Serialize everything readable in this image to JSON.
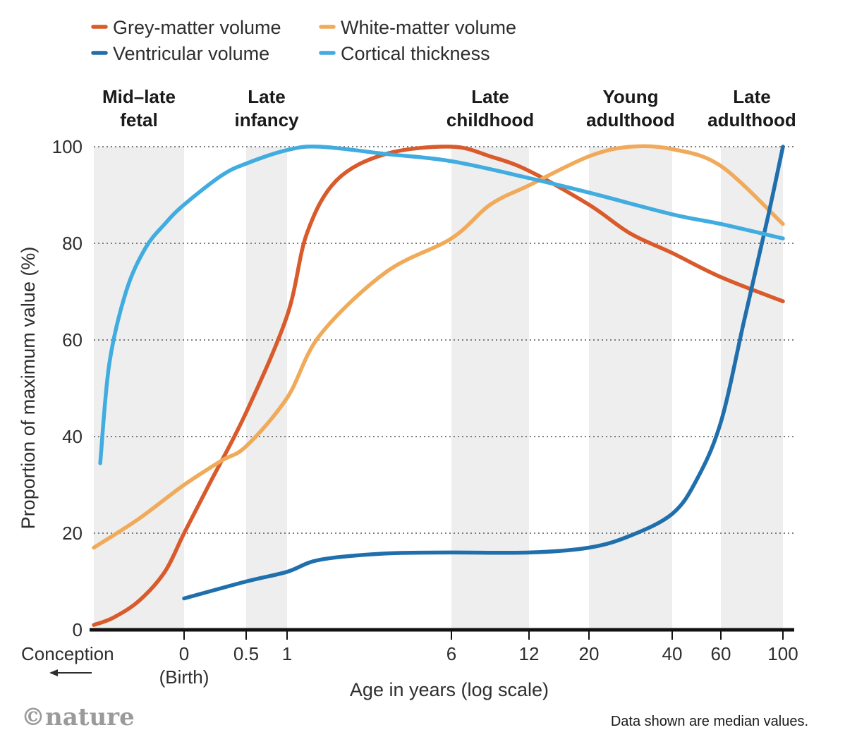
{
  "chart_data": {
    "type": "line",
    "title": "",
    "xlabel": "Age in years (log scale)",
    "ylabel": "Proportion of maximum value (%)",
    "ylim": [
      0,
      100
    ],
    "y_ticks": [
      "0",
      "20",
      "40",
      "60",
      "80",
      "100"
    ],
    "x_ticks": [
      {
        "label": "0",
        "sub": "(Birth)",
        "age": 0
      },
      {
        "label": "0.5",
        "age": 0.5
      },
      {
        "label": "1",
        "age": 1
      },
      {
        "label": "6",
        "age": 6
      },
      {
        "label": "12",
        "age": 12
      },
      {
        "label": "20",
        "age": 20
      },
      {
        "label": "40",
        "age": 40
      },
      {
        "label": "60",
        "age": 60
      },
      {
        "label": "100",
        "age": 100
      }
    ],
    "conception_label": "Conception",
    "life_stages": [
      {
        "name_line1": "Mid–late",
        "name_line2": "fetal",
        "from_age": -0.7,
        "to_age": 0
      },
      {
        "name_line1": "Late",
        "name_line2": "infancy",
        "from_age": 0.5,
        "to_age": 1
      },
      {
        "name_line1": "Late",
        "name_line2": "childhood",
        "from_age": 6,
        "to_age": 12
      },
      {
        "name_line1": "Young",
        "name_line2": "adulthood",
        "from_age": 20,
        "to_age": 40
      },
      {
        "name_line1": "Late",
        "name_line2": "adulthood",
        "from_age": 60,
        "to_age": 100
      }
    ],
    "series": [
      {
        "name": "Grey-matter volume",
        "color": "#d95a2b",
        "x": [
          -0.7,
          -0.55,
          -0.35,
          -0.15,
          0,
          0.2,
          0.5,
          1,
          1.6,
          2.5,
          4,
          6,
          9,
          12,
          20,
          30,
          40,
          60,
          100
        ],
        "y": [
          1,
          2.5,
          6,
          12,
          20,
          30,
          45,
          65,
          82,
          93,
          98.5,
          100,
          98,
          95,
          88,
          82,
          78,
          73,
          68
        ]
      },
      {
        "name": "White-matter volume",
        "color": "#f0aa5a",
        "x": [
          -0.7,
          -0.35,
          0,
          0.3,
          0.5,
          1,
          2,
          4,
          6,
          9,
          12,
          20,
          30,
          40,
          60,
          100
        ],
        "y": [
          17,
          23,
          30,
          35,
          38,
          48,
          61,
          74,
          81,
          88,
          92,
          98,
          100,
          99.5,
          96,
          84
        ]
      },
      {
        "name": "Ventricular volume",
        "color": "#1f6fad",
        "x": [
          0,
          0.5,
          1,
          2,
          4,
          6,
          12,
          20,
          30,
          40,
          50,
          60,
          75,
          90,
          100
        ],
        "y": [
          6.5,
          10,
          12,
          14.5,
          15.8,
          16,
          16,
          17,
          19.5,
          24,
          31,
          43,
          64,
          85,
          100
        ]
      },
      {
        "name": "Cortical thickness",
        "color": "#40ace0",
        "x": [
          -0.65,
          -0.58,
          -0.45,
          -0.3,
          -0.15,
          0,
          0.3,
          0.5,
          1,
          2,
          4,
          6,
          12,
          20,
          40,
          60,
          100
        ],
        "y": [
          34.5,
          55,
          70,
          79,
          84,
          88,
          94,
          96.5,
          99.3,
          100,
          98.5,
          97,
          93.5,
          90.5,
          86,
          84,
          81
        ]
      }
    ]
  },
  "footnote": "Data shown are median values.",
  "credit": "©nature"
}
